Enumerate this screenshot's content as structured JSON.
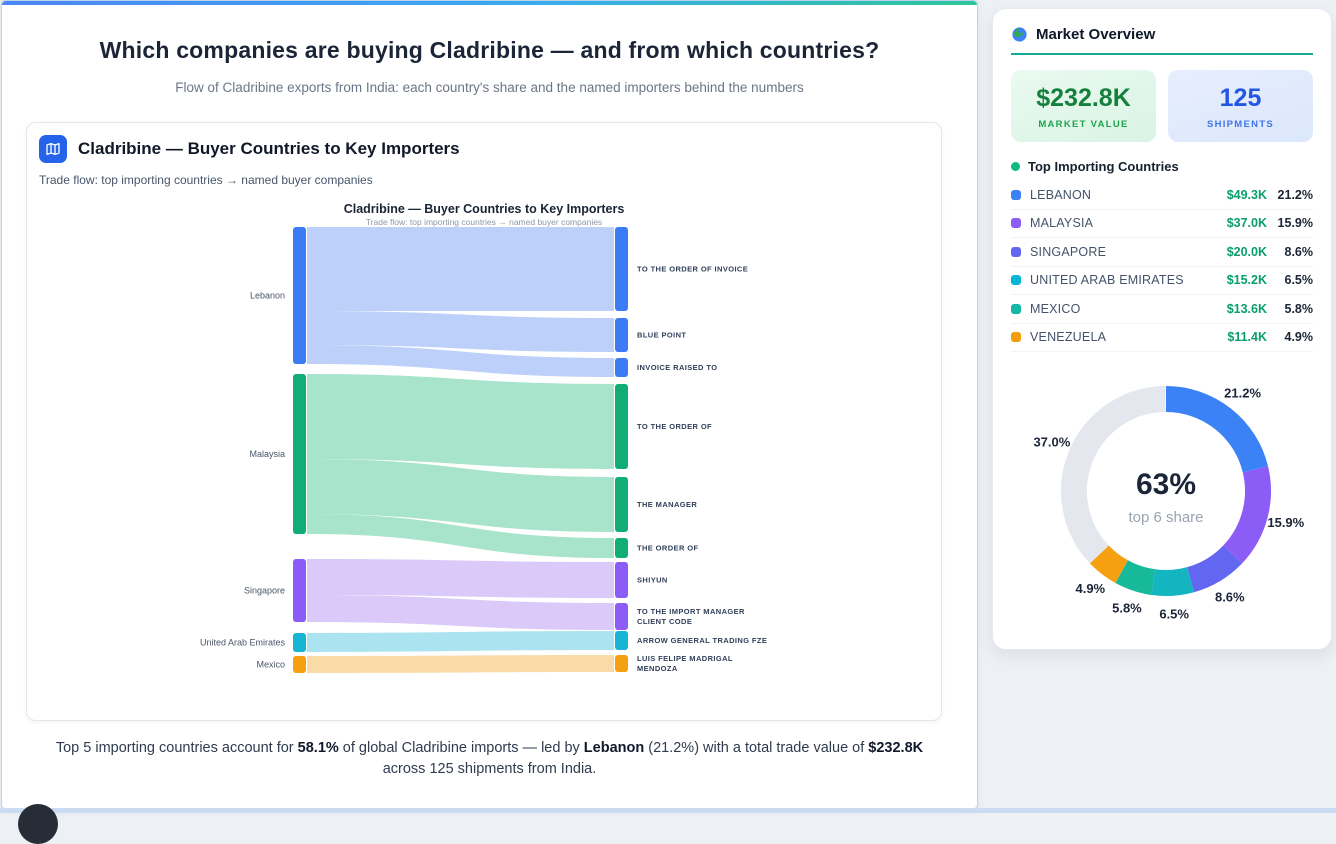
{
  "page": {
    "title": "Which companies are buying Cladribine — and from which countries?",
    "subtitle": "Flow of Cladribine exports from India: each country's share and the named importers behind the numbers"
  },
  "chart_card": {
    "icon": "map-icon",
    "title": "Cladribine — Buyer Countries to Key Importers",
    "subtitle": "Trade flow: top importing countries → named buyer companies"
  },
  "summary": {
    "s1": "Top 5 importing countries account for ",
    "b1": "58.1%",
    "s2": " of global Cladribine imports — led by ",
    "b2": "Lebanon",
    "s3": " (21.2%) with a total trade value of ",
    "b3": "$232.8K",
    "s4": " across 125 shipments from India."
  },
  "sidebar": {
    "icon": "globe-icon",
    "title": "Market Overview",
    "stats": [
      {
        "value": "$232.8K",
        "label": "MARKET VALUE",
        "theme": "green"
      },
      {
        "value": "125",
        "label": "SHIPMENTS",
        "theme": "blue"
      }
    ],
    "countries_header": "Top Importing Countries",
    "countries": [
      {
        "name": "LEBANON",
        "value": "$49.3K",
        "pct": "21.2%",
        "color": "#3b82f6"
      },
      {
        "name": "MALAYSIA",
        "value": "$37.0K",
        "pct": "15.9%",
        "color": "#8b5cf6"
      },
      {
        "name": "SINGAPORE",
        "value": "$20.0K",
        "pct": "8.6%",
        "color": "#6366f1"
      },
      {
        "name": "UNITED ARAB EMIRATES",
        "value": "$15.2K",
        "pct": "6.5%",
        "color": "#06b6d4"
      },
      {
        "name": "MEXICO",
        "value": "$13.6K",
        "pct": "5.8%",
        "color": "#14b8a6"
      },
      {
        "name": "VENEZUELA",
        "value": "$11.4K",
        "pct": "4.9%",
        "color": "#f59e0b"
      }
    ]
  },
  "chart_data": [
    {
      "type": "sankey",
      "title": "Cladribine — Buyer Countries to Key Importers",
      "subtitle": "Trade flow: top importing countries → named buyer companies",
      "left_axis": "importing countries",
      "right_axis": "named buyer companies",
      "weights_note": "weights are relative ribbon thickness read from the rendered chart (pixels), not labeled values",
      "flows_by_country": [
        {
          "country": "Lebanon",
          "node_color": "#3d7bf4",
          "link_color": "#bcd0f9",
          "flows": [
            {
              "importer": "TO THE ORDER OF INVOICE",
              "weight": 84
            },
            {
              "importer": "BLUE POINT",
              "weight": 34
            },
            {
              "importer": "INVOICE RAISED TO",
              "weight": 19
            }
          ]
        },
        {
          "country": "Malaysia",
          "node_color": "#10ae76",
          "link_color": "#a8e3cb",
          "flows": [
            {
              "importer": "TO THE ORDER OF",
              "weight": 85
            },
            {
              "importer": "THE MANAGER",
              "weight": 55
            },
            {
              "importer": "THE ORDER OF",
              "weight": 20
            }
          ]
        },
        {
          "country": "Singapore",
          "node_color": "#8b5cf6",
          "link_color": "#dac9f9",
          "flows": [
            {
              "importer": "SHIYUN",
              "weight": 36
            },
            {
              "importer": "TO THE IMPORT MANAGER CLIENT CODE",
              "weight": 27
            }
          ]
        },
        {
          "country": "United Arab Emirates",
          "node_color": "#17b5d4",
          "link_color": "#abe4f0",
          "flows": [
            {
              "importer": "ARROW GENERAL TRADING FZE",
              "weight": 19
            }
          ]
        },
        {
          "country": "Mexico",
          "node_color": "#f5a011",
          "link_color": "#f8dba6",
          "flows": [
            {
              "importer": "LUIS FELIPE MADRIGAL MENDOZA",
              "weight": 17
            }
          ]
        }
      ]
    },
    {
      "type": "pie",
      "variant": "donut",
      "center_value": "63%",
      "center_label": "top 6 share",
      "slices": [
        {
          "label": "21.2%",
          "value": 21.2,
          "name": "Lebanon",
          "color": "#3b82f6"
        },
        {
          "label": "15.9%",
          "value": 15.9,
          "name": "Malaysia",
          "color": "#8b5cf6"
        },
        {
          "label": "8.6%",
          "value": 8.6,
          "name": "Singapore",
          "color": "#6366f1"
        },
        {
          "label": "6.5%",
          "value": 6.5,
          "name": "United Arab Emirates",
          "color": "#12b5c0"
        },
        {
          "label": "5.8%",
          "value": 5.8,
          "name": "Mexico",
          "color": "#16b99a"
        },
        {
          "label": "4.9%",
          "value": 4.9,
          "name": "Venezuela",
          "color": "#f5a011"
        },
        {
          "label": "37.0%",
          "value": 37.0,
          "name": "Other",
          "color": "#e4e8ee",
          "is_remainder": true
        }
      ]
    }
  ]
}
